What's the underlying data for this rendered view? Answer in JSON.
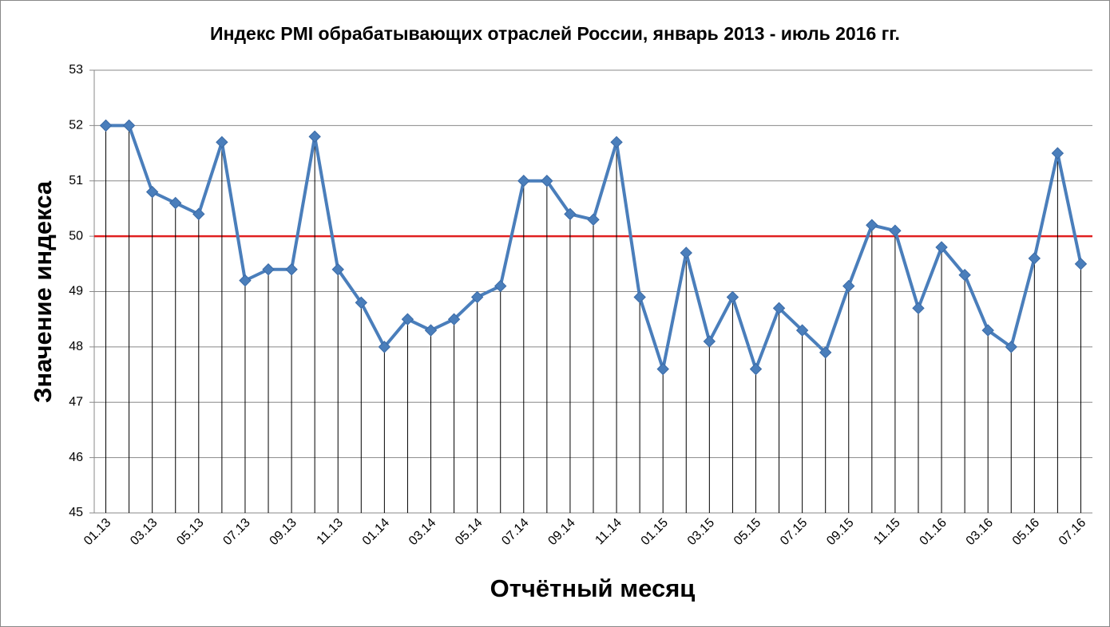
{
  "chart_data": {
    "type": "line",
    "title": "Индекс PMI обрабатывающих отраслей России, январь 2013 - июль 2016 гг.",
    "x_label": "Отчётный месяц",
    "y_label": "Значение индекса",
    "categories": [
      "01.13",
      null,
      "03.13",
      null,
      "05.13",
      null,
      "07.13",
      null,
      "09.13",
      null,
      "11.13",
      null,
      "01.14",
      null,
      "03.14",
      null,
      "05.14",
      null,
      "07.14",
      null,
      "09.14",
      null,
      "11.14",
      null,
      "01.15",
      null,
      "03.15",
      null,
      "05.15",
      null,
      "07.15",
      null,
      "09.15",
      null,
      "11.15",
      null,
      "01.16",
      null,
      "03.16",
      null,
      "05.16",
      null,
      "07.16"
    ],
    "series": [
      {
        "name": "PMI",
        "color": "#4a7ebb",
        "values": [
          52.0,
          52.0,
          50.8,
          50.6,
          50.4,
          51.7,
          49.2,
          49.4,
          49.4,
          51.8,
          49.4,
          48.8,
          48.0,
          48.5,
          48.3,
          48.5,
          48.9,
          49.1,
          51.0,
          51.0,
          50.4,
          50.3,
          51.7,
          48.9,
          47.6,
          49.7,
          48.1,
          48.9,
          47.6,
          48.7,
          48.3,
          47.9,
          49.1,
          50.2,
          50.1,
          48.7,
          49.8,
          49.3,
          48.3,
          48.0,
          49.6,
          51.5,
          49.5
        ]
      }
    ],
    "reference_line": {
      "value": 50,
      "color": "#e02020"
    },
    "drop_lines": true,
    "ylim": [
      45,
      53
    ],
    "yticks": [
      45,
      46,
      47,
      48,
      49,
      50,
      51,
      52,
      53
    ],
    "grid": true
  }
}
